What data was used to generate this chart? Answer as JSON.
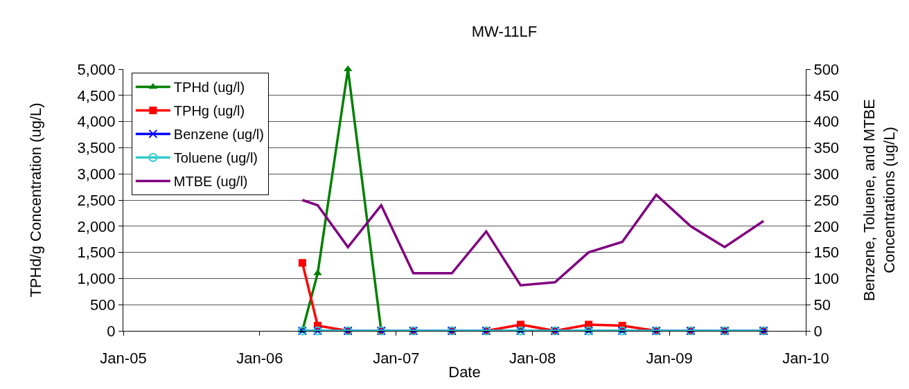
{
  "chart_data": {
    "type": "line",
    "title": "MW-11LF",
    "xlabel": "Date",
    "ylabel": "TPHd/g Concentration (ug/L)",
    "y2label": "Benzene, Toluene, and MTBE\nConcentrations (ug/L)",
    "x": [
      "2006-04-25",
      "2006-06-05",
      "2006-08-25",
      "2006-11-22",
      "2007-02-16",
      "2007-05-30",
      "2007-08-30",
      "2007-11-30",
      "2008-03-01",
      "2008-05-30",
      "2008-08-28",
      "2008-11-27",
      "2009-02-27",
      "2009-05-29",
      "2009-09-10"
    ],
    "xlim": [
      "2005-01",
      "2010-01"
    ],
    "xticks": [
      {
        "value": "2005-01",
        "label": "Jan-05"
      },
      {
        "value": "2006-01",
        "label": "Jan-06"
      },
      {
        "value": "2007-01",
        "label": "Jan-07"
      },
      {
        "value": "2008-01",
        "label": "Jan-08"
      },
      {
        "value": "2009-01",
        "label": "Jan-09"
      },
      {
        "value": "2010-01",
        "label": "Jan-10"
      }
    ],
    "ylim": [
      0,
      5000
    ],
    "yticks": [
      0,
      500,
      {
        "value": 1000,
        "label": "1,000"
      },
      {
        "value": 1500,
        "label": "1,500"
      },
      {
        "value": 2000,
        "label": "2,000"
      },
      {
        "value": 2500,
        "label": "2,500"
      },
      {
        "value": 3000,
        "label": "3,000"
      },
      {
        "value": 3500,
        "label": "3,500"
      },
      {
        "value": 4000,
        "label": "4,000"
      },
      {
        "value": 4500,
        "label": "4,500"
      },
      {
        "value": 5000,
        "label": "5,000"
      }
    ],
    "y2lim": [
      0,
      500
    ],
    "y2ticks": [
      0,
      50,
      100,
      150,
      200,
      250,
      300,
      350,
      400,
      450,
      500
    ],
    "series": [
      {
        "name": "TPHd (ug/l)",
        "color": "#008000",
        "marker": "triangle",
        "values": [
          0,
          1100,
          5000,
          0,
          null,
          null,
          null,
          0,
          null,
          0,
          0,
          null,
          null,
          null,
          null
        ]
      },
      {
        "name": "TPHg (ug/l)",
        "color": "#ff0000",
        "marker": "square",
        "values": [
          1300,
          100,
          0,
          0,
          0,
          0,
          0,
          120,
          0,
          120,
          100,
          0,
          0,
          0,
          0
        ]
      },
      {
        "name": "Benzene (ug/l)",
        "color": "#0000ff",
        "marker": "cross",
        "axis": "y2",
        "values": [
          0,
          0,
          0,
          0,
          0,
          0,
          0,
          0,
          0,
          0,
          0,
          0,
          0,
          0,
          0
        ]
      },
      {
        "name": "Toluene (ug/l)",
        "color": "#33cccc",
        "marker": "circle",
        "axis": "y2",
        "values": [
          0,
          0,
          0,
          0,
          0,
          0,
          0,
          0,
          0,
          0,
          0,
          0,
          0,
          0,
          0
        ]
      },
      {
        "name": "MTBE (ug/l)",
        "color": "#800080",
        "marker": "none",
        "axis": "y2",
        "values": [
          250,
          240,
          160,
          240,
          110,
          110,
          190,
          87,
          93,
          150,
          170,
          260,
          200,
          160,
          210
        ]
      }
    ],
    "grid": "y",
    "legend": "top left"
  }
}
